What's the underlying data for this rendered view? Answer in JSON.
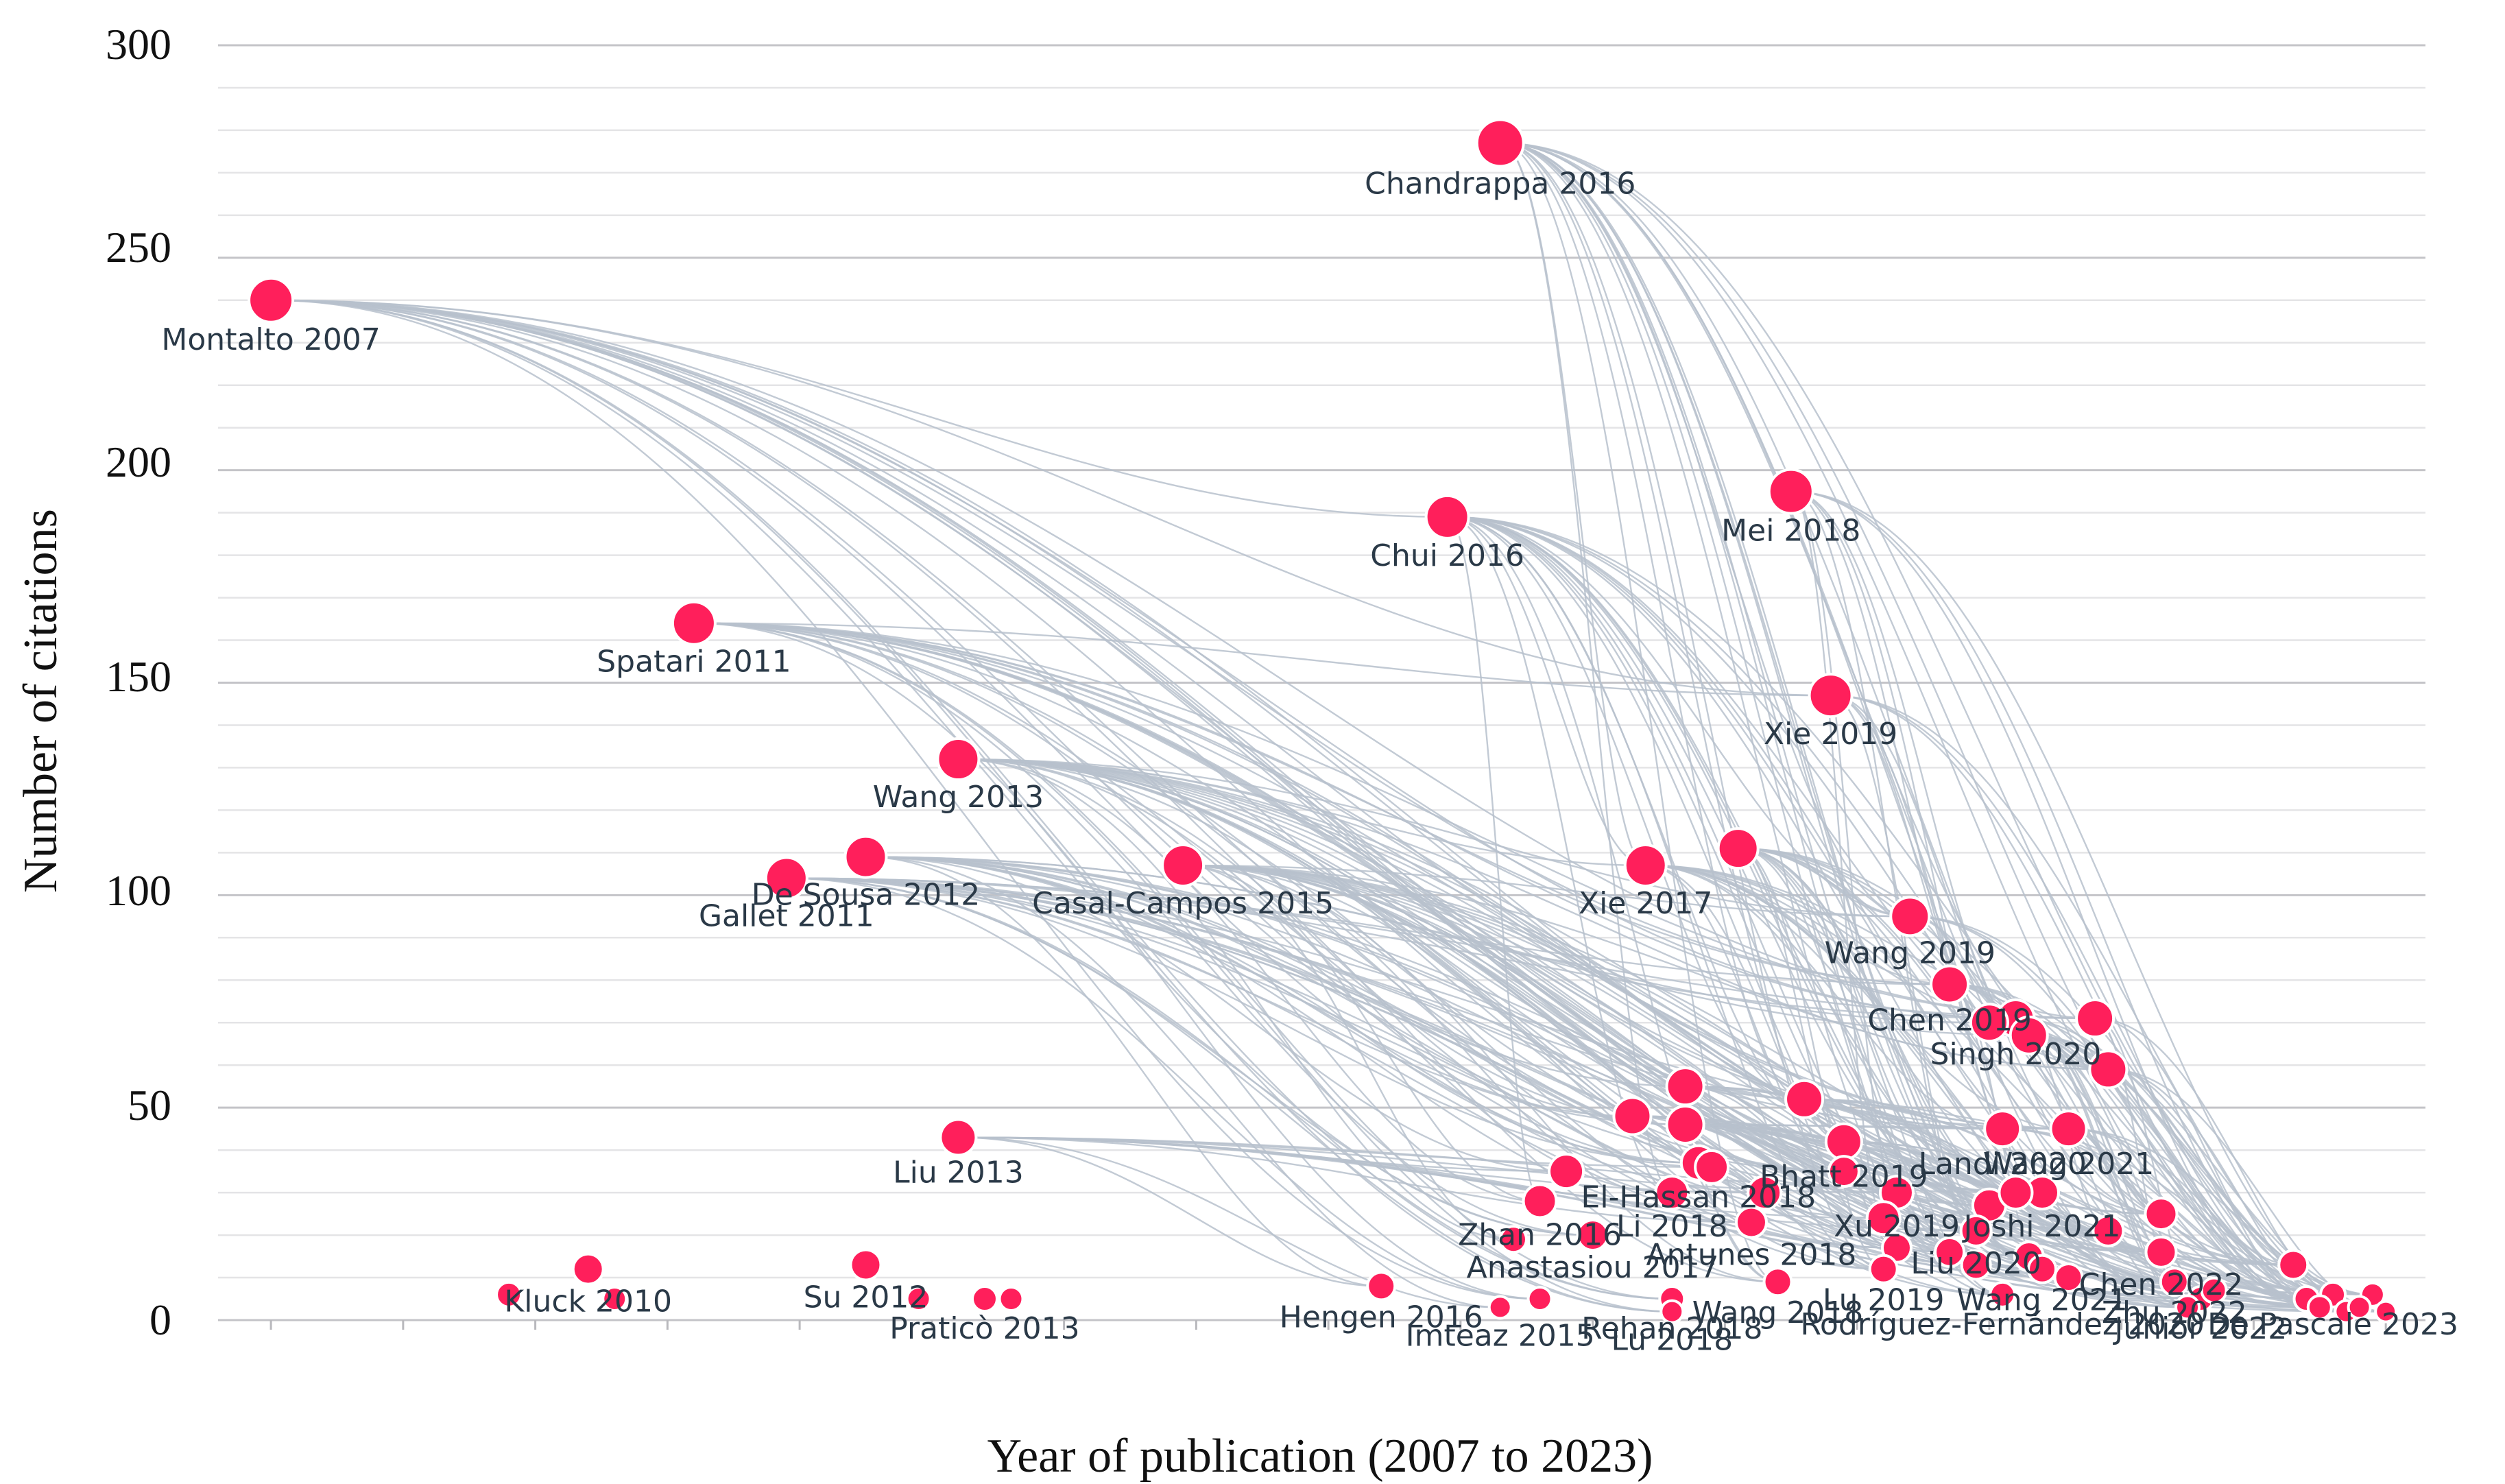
{
  "chart_data": {
    "type": "scatter",
    "xlabel": "Year of publication (2007 to 2023)",
    "ylabel": "Number of citations",
    "xlim": [
      2006.6,
      2023.3
    ],
    "ylim": [
      0,
      300
    ],
    "yticks": [
      "0",
      "50",
      "100",
      "150",
      "200",
      "250",
      "300"
    ],
    "grid": true,
    "colors": {
      "point": "#ff1f5b",
      "link": "#b7c1cc",
      "grid_major": "#c4c4c8",
      "grid_minor": "#e4e4e6"
    },
    "labeled_points": [
      {
        "label": "Chandrappa 2016",
        "x": 2016.3,
        "y": 277,
        "r": 34
      },
      {
        "label": "Montalto 2007",
        "x": 2007.0,
        "y": 240,
        "r": 32
      },
      {
        "label": "Mei 2018",
        "x": 2018.5,
        "y": 195,
        "r": 32
      },
      {
        "label": "Chui 2016",
        "x": 2015.9,
        "y": 189,
        "r": 31
      },
      {
        "label": "Spatari 2011",
        "x": 2010.2,
        "y": 164,
        "r": 31
      },
      {
        "label": "Xie 2019",
        "x": 2018.8,
        "y": 147,
        "r": 31
      },
      {
        "label": "Wang 2013",
        "x": 2012.2,
        "y": 132,
        "r": 30
      },
      {
        "label": "Gallet 2011",
        "x": 2010.9,
        "y": 104,
        "r": 30
      },
      {
        "label": "De Sousa 2012",
        "x": 2011.5,
        "y": 109,
        "r": 30
      },
      {
        "label": "Casal-Campos 2015",
        "x": 2013.9,
        "y": 107,
        "r": 30
      },
      {
        "label": "Xie 2017",
        "x": 2017.4,
        "y": 107,
        "r": 30
      },
      {
        "label": "Wang 2019",
        "x": 2019.4,
        "y": 95,
        "r": 28
      },
      {
        "label": "Chen 2019",
        "x": 2019.7,
        "y": 79,
        "r": 27
      },
      {
        "label": "Singh 2020",
        "x": 2020.2,
        "y": 71,
        "r": 27
      },
      {
        "label": "Landi 2020",
        "x": 2020.1,
        "y": 45,
        "r": 26
      },
      {
        "label": "Wang 2021",
        "x": 2020.6,
        "y": 45,
        "r": 26
      },
      {
        "label": "Bhatt 2019",
        "x": 2018.9,
        "y": 42,
        "r": 26
      },
      {
        "label": "Xu 2019",
        "x": 2019.3,
        "y": 30,
        "r": 24
      },
      {
        "label": "Joshi 2021",
        "x": 2020.4,
        "y": 30,
        "r": 24
      },
      {
        "label": "El-Hassan 2018",
        "x": 2017.8,
        "y": 37,
        "r": 25
      },
      {
        "label": "Liu 2013",
        "x": 2012.2,
        "y": 43,
        "r": 26
      },
      {
        "label": "Li 2018",
        "x": 2017.6,
        "y": 30,
        "r": 24
      },
      {
        "label": "Zhan 2016",
        "x": 2016.6,
        "y": 28,
        "r": 24
      },
      {
        "label": "Antunes 2018",
        "x": 2018.2,
        "y": 23,
        "r": 22
      },
      {
        "label": "Liu 2020",
        "x": 2019.9,
        "y": 21,
        "r": 22
      },
      {
        "label": "Anastasiou 2017",
        "x": 2017.0,
        "y": 20,
        "r": 22
      },
      {
        "label": "Lu 2019",
        "x": 2019.2,
        "y": 12,
        "r": 20
      },
      {
        "label": "Chen 2022",
        "x": 2021.3,
        "y": 16,
        "r": 22
      },
      {
        "label": "Wang 2018",
        "x": 2018.4,
        "y": 9,
        "r": 20
      },
      {
        "label": "Zhu 2022",
        "x": 2021.4,
        "y": 9,
        "r": 20
      },
      {
        "label": "Hengen 2016",
        "x": 2015.4,
        "y": 8,
        "r": 20
      },
      {
        "label": "Rehan 2018",
        "x": 2017.6,
        "y": 5,
        "r": 18
      },
      {
        "label": "Rodríguez-Fernández 2020",
        "x": 2020.1,
        "y": 6,
        "r": 18
      },
      {
        "label": "Kluck 2010",
        "x": 2009.4,
        "y": 12,
        "r": 22
      },
      {
        "label": "Su 2012",
        "x": 2011.5,
        "y": 13,
        "r": 22
      },
      {
        "label": "Praticò 2013",
        "x": 2012.4,
        "y": 5,
        "r": 18
      },
      {
        "label": "Imteaz 2015",
        "x": 2016.3,
        "y": 3,
        "r": 16
      },
      {
        "label": "Lu 2018",
        "x": 2017.6,
        "y": 2,
        "r": 16
      },
      {
        "label": "Wang 2021",
        "x": 2020.4,
        "y": 12,
        "r": 20
      },
      {
        "label": "Junior 2022",
        "x": 2021.6,
        "y": 5,
        "r": 18
      },
      {
        "label": "De Pascale 2023",
        "x": 2022.6,
        "y": 6,
        "r": 18
      }
    ],
    "unlabeled_points": [
      {
        "x": 2008.8,
        "y": 6,
        "r": 18
      },
      {
        "x": 2009.6,
        "y": 5,
        "r": 17
      },
      {
        "x": 2011.9,
        "y": 5,
        "r": 17
      },
      {
        "x": 2012.6,
        "y": 5,
        "r": 17
      },
      {
        "x": 2016.6,
        "y": 5,
        "r": 17
      },
      {
        "x": 2016.4,
        "y": 19,
        "r": 19
      },
      {
        "x": 2016.8,
        "y": 35,
        "r": 25
      },
      {
        "x": 2017.3,
        "y": 48,
        "r": 27
      },
      {
        "x": 2017.7,
        "y": 46,
        "r": 27
      },
      {
        "x": 2017.7,
        "y": 55,
        "r": 27
      },
      {
        "x": 2017.9,
        "y": 36,
        "r": 24
      },
      {
        "x": 2018.1,
        "y": 111,
        "r": 29
      },
      {
        "x": 2018.3,
        "y": 30,
        "r": 24
      },
      {
        "x": 2018.6,
        "y": 52,
        "r": 27
      },
      {
        "x": 2018.9,
        "y": 35,
        "r": 22
      },
      {
        "x": 2019.2,
        "y": 24,
        "r": 24
      },
      {
        "x": 2019.3,
        "y": 17,
        "r": 21
      },
      {
        "x": 2019.7,
        "y": 16,
        "r": 21
      },
      {
        "x": 2019.9,
        "y": 13,
        "r": 21
      },
      {
        "x": 2020.0,
        "y": 70,
        "r": 27
      },
      {
        "x": 2020.0,
        "y": 27,
        "r": 24
      },
      {
        "x": 2020.2,
        "y": 30,
        "r": 24
      },
      {
        "x": 2020.3,
        "y": 67,
        "r": 27
      },
      {
        "x": 2020.3,
        "y": 15,
        "r": 21
      },
      {
        "x": 2020.6,
        "y": 10,
        "r": 20
      },
      {
        "x": 2020.8,
        "y": 71,
        "r": 27
      },
      {
        "x": 2020.9,
        "y": 59,
        "r": 27
      },
      {
        "x": 2020.9,
        "y": 21,
        "r": 22
      },
      {
        "x": 2021.3,
        "y": 25,
        "r": 23
      },
      {
        "x": 2021.5,
        "y": 3,
        "r": 17
      },
      {
        "x": 2021.7,
        "y": 7,
        "r": 18
      },
      {
        "x": 2022.3,
        "y": 13,
        "r": 21
      },
      {
        "x": 2022.4,
        "y": 5,
        "r": 18
      },
      {
        "x": 2022.5,
        "y": 3,
        "r": 17
      },
      {
        "x": 2022.7,
        "y": 2,
        "r": 16
      },
      {
        "x": 2022.8,
        "y": 3,
        "r": 16
      },
      {
        "x": 2022.9,
        "y": 6,
        "r": 17
      },
      {
        "x": 2023.0,
        "y": 2,
        "r": 15
      }
    ]
  }
}
